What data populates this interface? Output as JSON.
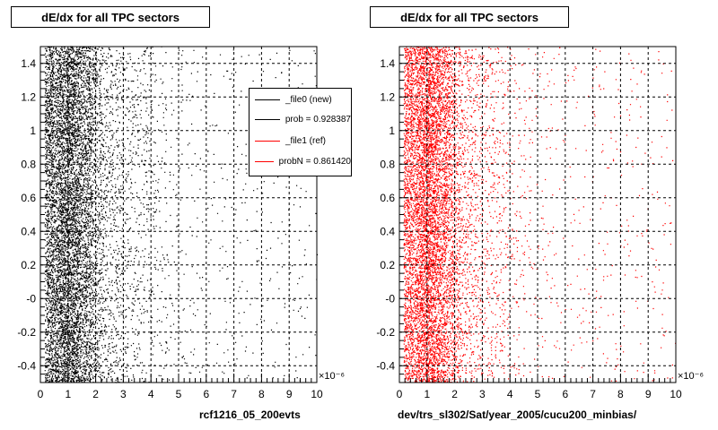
{
  "chart_data": [
    {
      "type": "scatter",
      "title": "dE/dx for all TPC sectors",
      "file_label": "rcf1216_05_200evts",
      "xlim": [
        0,
        10
      ],
      "ylim": [
        -0.5,
        1.5
      ],
      "x_exponent": "×10⁻⁶",
      "x_ticks": [
        "0",
        "1",
        "2",
        "3",
        "4",
        "5",
        "6",
        "7",
        "8",
        "9",
        "10"
      ],
      "y_ticks": [
        "-0.4",
        "-0.2",
        "-0",
        "0.2",
        "0.4",
        "0.6",
        "0.8",
        "1",
        "1.2",
        "1.4"
      ],
      "grid": true,
      "marker_color": "#000000",
      "legend_placement": "top-right",
      "legend": [
        {
          "label": "_file0 (new)",
          "color": "#000000"
        },
        {
          "label": "prob = 0.928387",
          "color": "#000000"
        },
        {
          "label": "_file1 (ref)",
          "color": "#ff0000"
        },
        {
          "label": "probN = 0.861420",
          "color": "#ff0000"
        }
      ]
    },
    {
      "type": "scatter",
      "title": "dE/dx for all TPC sectors",
      "file_label": "dev/trs_sl302/Sat/year_2005/cucu200_minbias/",
      "xlim": [
        0,
        10
      ],
      "ylim": [
        -0.5,
        1.5
      ],
      "x_exponent": "×10⁻⁶",
      "x_ticks": [
        "0",
        "1",
        "2",
        "3",
        "4",
        "5",
        "6",
        "7",
        "8",
        "9",
        "10"
      ],
      "y_ticks": [
        "-0.4",
        "-0.2",
        "-0",
        "0.2",
        "0.4",
        "0.6",
        "0.8",
        "1",
        "1.2",
        "1.4"
      ],
      "grid": true,
      "marker_color": "#ff0000"
    }
  ]
}
